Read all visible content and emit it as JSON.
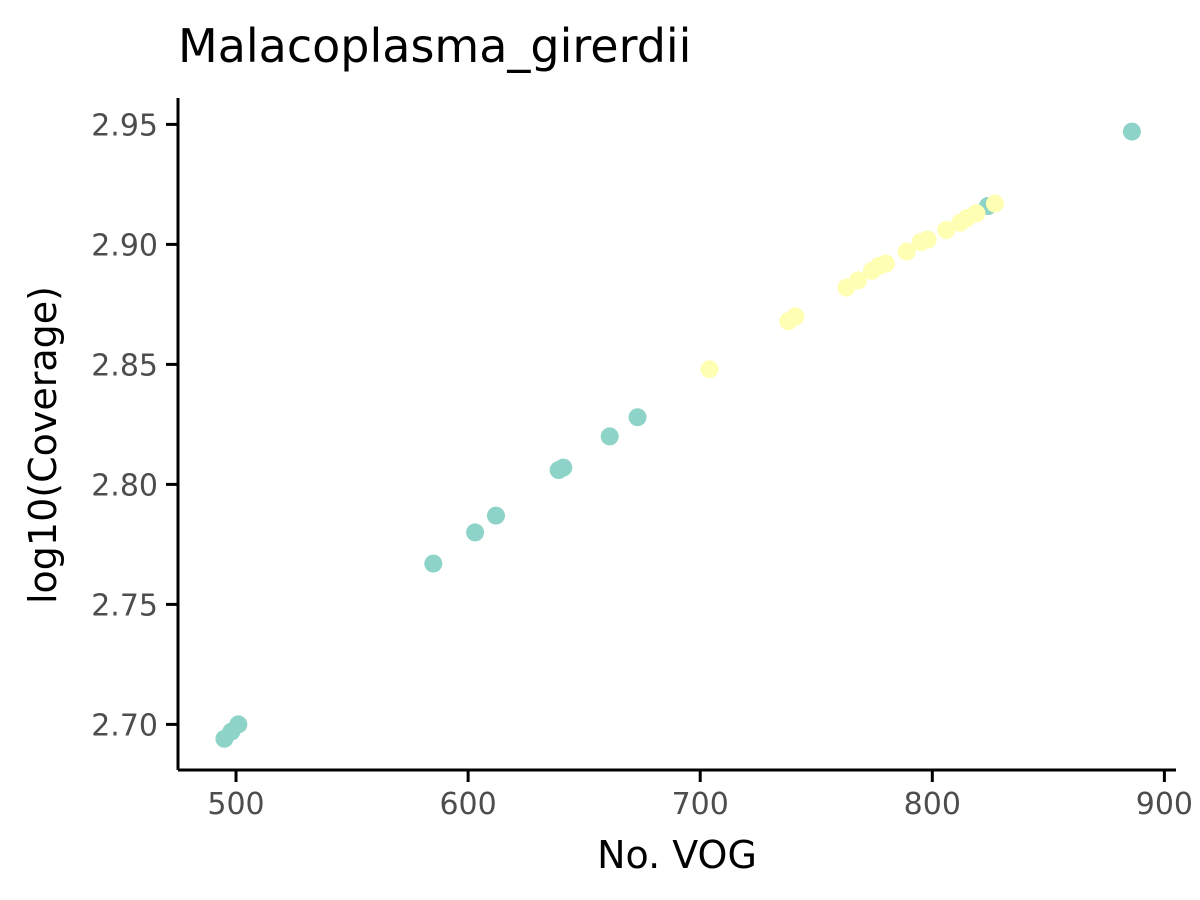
{
  "chart_data": {
    "type": "scatter",
    "title": "Malacoplasma_girerdii",
    "xlabel": "No. VOG",
    "ylabel": "log10(Coverage)",
    "xlim": [
      475,
      905
    ],
    "ylim": [
      2.681,
      2.961
    ],
    "x_ticks": [
      500,
      600,
      700,
      800,
      900
    ],
    "y_ticks": [
      2.7,
      2.75,
      2.8,
      2.85,
      2.9,
      2.95
    ],
    "x_tick_labels": [
      "500",
      "600",
      "700",
      "800",
      "900"
    ],
    "y_tick_labels": [
      "2.70",
      "2.75",
      "2.80",
      "2.85",
      "2.90",
      "2.95"
    ],
    "grid": false,
    "legend": "none",
    "colors": {
      "teal": "#8dd3c7",
      "yellow": "#ffffb3"
    },
    "series": [
      {
        "color": "#8dd3c7",
        "points": [
          {
            "x": 495,
            "y": 2.694
          },
          {
            "x": 498,
            "y": 2.697
          },
          {
            "x": 501,
            "y": 2.7
          },
          {
            "x": 585,
            "y": 2.767
          },
          {
            "x": 603,
            "y": 2.78
          },
          {
            "x": 612,
            "y": 2.787
          },
          {
            "x": 639,
            "y": 2.806
          },
          {
            "x": 641,
            "y": 2.807
          },
          {
            "x": 661,
            "y": 2.82
          },
          {
            "x": 673,
            "y": 2.828
          },
          {
            "x": 824,
            "y": 2.916
          },
          {
            "x": 886,
            "y": 2.947
          }
        ]
      },
      {
        "color": "#ffffb3",
        "points": [
          {
            "x": 704,
            "y": 2.848
          },
          {
            "x": 738,
            "y": 2.868
          },
          {
            "x": 741,
            "y": 2.87
          },
          {
            "x": 763,
            "y": 2.882
          },
          {
            "x": 768,
            "y": 2.885
          },
          {
            "x": 774,
            "y": 2.889
          },
          {
            "x": 777,
            "y": 2.891
          },
          {
            "x": 780,
            "y": 2.892
          },
          {
            "x": 789,
            "y": 2.897
          },
          {
            "x": 795,
            "y": 2.901
          },
          {
            "x": 798,
            "y": 2.902
          },
          {
            "x": 806,
            "y": 2.906
          },
          {
            "x": 812,
            "y": 2.909
          },
          {
            "x": 815,
            "y": 2.911
          },
          {
            "x": 819,
            "y": 2.913
          },
          {
            "x": 827,
            "y": 2.917
          }
        ]
      }
    ]
  }
}
